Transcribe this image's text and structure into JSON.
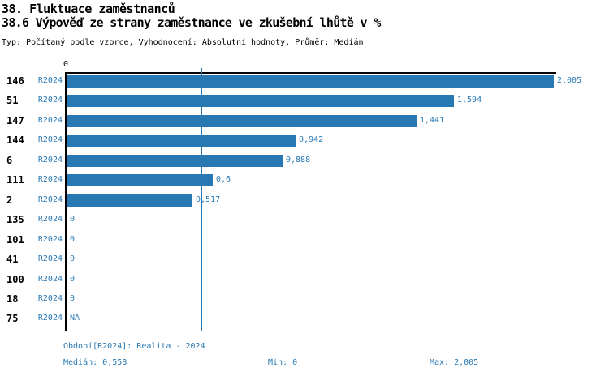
{
  "header": {
    "title": "38. Fluktuace zaměstnanců",
    "subtitle": "38.6 Výpověď ze strany zaměstnance ve zkušební lhůtě v %",
    "meta": "Typ: Počítaný podle vzorce, Vyhodnocení: Absolutní hodnoty, Průměr: Medián"
  },
  "chart_data": {
    "type": "bar",
    "orientation": "horizontal",
    "title": "38.6 Výpověď ze strany zaměstnance ve zkušební lhůtě v %",
    "categories": [
      "146",
      "51",
      "147",
      "144",
      "6",
      "111",
      "2",
      "135",
      "101",
      "41",
      "100",
      "18",
      "75"
    ],
    "series": [
      {
        "name": "R2024",
        "values": [
          2.005,
          1.594,
          1.441,
          0.942,
          0.888,
          0.6,
          0.517,
          0,
          0,
          0,
          0,
          0,
          null
        ],
        "value_labels": [
          "2,005",
          "1,594",
          "1,441",
          "0,942",
          "0,888",
          "0,6",
          "0,517",
          "0",
          "0",
          "0",
          "0",
          "0",
          "NA"
        ]
      }
    ],
    "x_axis": {
      "tick_labels": [
        "0"
      ],
      "range": [
        0,
        2.005
      ]
    },
    "median_line": {
      "value": 0.558
    },
    "stats": {
      "median": 0.558,
      "min": 0,
      "max": 2.005
    },
    "grid": false,
    "legend_position": "none",
    "colors": {
      "bar": "#2878b4",
      "median_line": "#2878b4",
      "period_text": "#2878b4",
      "value_text": "#2878b4",
      "axis": "#000000"
    }
  },
  "footer": {
    "period": "Období[R2024]: Realita - 2024",
    "median": "Medián: 0,558",
    "min": "Min: 0",
    "max": "Max: 2,005"
  }
}
